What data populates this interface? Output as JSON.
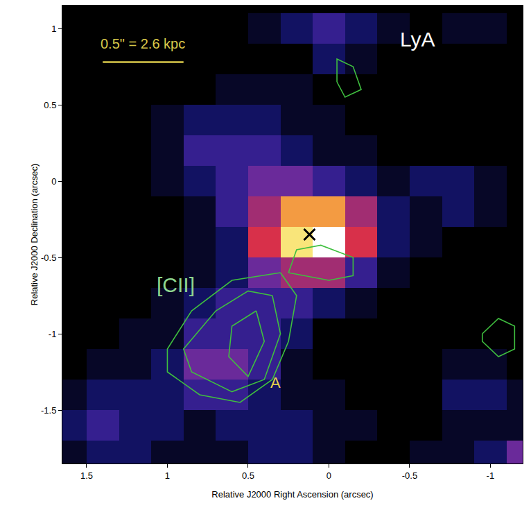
{
  "chart_data": {
    "type": "heatmap",
    "x_title": "Relative J2000 Right Ascension (arcsec)",
    "y_title": "Relative J2000 Declination (arcsec)",
    "xlim": [
      1.65,
      -1.2
    ],
    "xticks": [
      1.5,
      1,
      0.5,
      0,
      -0.5,
      -1
    ],
    "ylim": [
      -1.85,
      1.15
    ],
    "yticks": [
      -1.5,
      -1,
      -0.5,
      0,
      0.5,
      1
    ],
    "x": [
      1.6,
      1.4,
      1.2,
      1.0,
      0.8,
      0.6,
      0.4,
      0.2,
      0.0,
      -0.2,
      -0.4,
      -0.6,
      -0.8,
      -1.0,
      -1.2
    ],
    "y": [
      -1.8,
      -1.6,
      -1.4,
      -1.2,
      -1.0,
      -0.8,
      -0.6,
      -0.4,
      -0.2,
      0.0,
      0.2,
      0.4,
      0.6,
      0.8,
      1.0
    ],
    "z": [
      [
        1,
        2,
        2,
        1,
        1,
        1,
        2,
        2,
        1,
        0,
        0,
        1,
        1,
        2,
        4
      ],
      [
        2,
        3,
        2,
        2,
        1,
        2,
        2,
        2,
        1,
        1,
        0,
        0,
        1,
        1,
        1
      ],
      [
        1,
        2,
        2,
        2,
        3,
        3,
        2,
        1,
        1,
        0,
        0,
        0,
        2,
        2,
        1
      ],
      [
        0,
        1,
        1,
        2,
        4,
        4,
        3,
        1,
        0,
        0,
        0,
        0,
        1,
        1,
        0
      ],
      [
        0,
        0,
        1,
        1,
        3,
        3,
        3,
        2,
        0,
        0,
        0,
        0,
        0,
        0,
        0
      ],
      [
        0,
        0,
        0,
        1,
        2,
        3,
        3,
        3,
        2,
        1,
        0,
        0,
        0,
        0,
        0
      ],
      [
        0,
        0,
        0,
        0,
        1,
        2,
        4,
        5,
        5,
        3,
        1,
        0,
        0,
        0,
        0
      ],
      [
        0,
        0,
        0,
        0,
        1,
        2,
        6,
        9,
        10,
        6,
        2,
        1,
        0,
        0,
        0
      ],
      [
        0,
        0,
        0,
        0,
        1,
        3,
        5,
        8,
        8,
        5,
        2,
        1,
        2,
        1,
        0
      ],
      [
        0,
        0,
        0,
        1,
        2,
        3,
        4,
        4,
        3,
        2,
        1,
        2,
        2,
        1,
        0
      ],
      [
        0,
        0,
        0,
        1,
        3,
        3,
        3,
        2,
        1,
        1,
        0,
        0,
        0,
        0,
        0
      ],
      [
        0,
        0,
        0,
        1,
        2,
        2,
        2,
        1,
        1,
        0,
        0,
        0,
        0,
        0,
        0
      ],
      [
        0,
        0,
        0,
        0,
        0,
        1,
        1,
        1,
        0,
        0,
        0,
        0,
        0,
        0,
        0
      ],
      [
        0,
        0,
        0,
        0,
        0,
        0,
        0,
        0,
        2,
        1,
        0,
        0,
        0,
        0,
        0
      ],
      [
        0,
        0,
        0,
        0,
        0,
        0,
        1,
        2,
        3,
        2,
        1,
        0,
        1,
        1,
        0
      ]
    ],
    "zlim": [
      0,
      10
    ],
    "contours": {
      "color": "#3fbf3f",
      "lines": [
        {
          "x": [
            0.3,
            0.2,
            0.25,
            0.35,
            0.55,
            0.8,
            1.0,
            1.0,
            0.85,
            0.6,
            0.3
          ],
          "y": [
            -0.6,
            -0.75,
            -1.05,
            -1.3,
            -1.45,
            -1.4,
            -1.25,
            -1.1,
            -0.85,
            -0.65,
            -0.6
          ]
        },
        {
          "x": [
            0.35,
            0.3,
            0.4,
            0.6,
            0.85,
            0.9,
            0.7,
            0.5,
            0.35
          ],
          "y": [
            -0.75,
            -1.0,
            -1.3,
            -1.38,
            -1.25,
            -1.1,
            -0.85,
            -0.72,
            -0.75
          ]
        },
        {
          "x": [
            0.45,
            0.4,
            0.5,
            0.62,
            0.6,
            0.45
          ],
          "y": [
            -0.85,
            -1.05,
            -1.28,
            -1.15,
            -0.95,
            -0.85
          ]
        },
        {
          "x": [
            0.25,
            0.2,
            0.05,
            -0.15,
            -0.15,
            0.0,
            0.25
          ],
          "y": [
            -0.6,
            -0.45,
            -0.42,
            -0.5,
            -0.62,
            -0.65,
            -0.6
          ]
        },
        {
          "x": [
            -0.05,
            -0.05,
            -0.15,
            -0.2,
            -0.1,
            -0.05
          ],
          "y": [
            0.65,
            0.8,
            0.75,
            0.6,
            0.55,
            0.65
          ]
        },
        {
          "x": [
            -0.95,
            -1.05,
            -1.15,
            -1.15,
            -1.05,
            -0.95,
            -0.95
          ],
          "y": [
            -1.0,
            -0.9,
            -0.95,
            -1.1,
            -1.15,
            -1.05,
            -1.0
          ]
        }
      ]
    },
    "cross": {
      "x": 0.12,
      "y": -0.35,
      "marker": "x",
      "color": "#000000"
    },
    "scale_bar": {
      "label": "0.5\" = 2.6 kpc",
      "x": [
        1.4,
        0.9
      ],
      "y": 0.78,
      "label_y": 0.9,
      "color": "#d9c84a"
    },
    "annotations": [
      {
        "text": "LyA",
        "x": -0.55,
        "y": 0.93,
        "color": "#ffffff"
      },
      {
        "text": "[CII]",
        "x": 0.95,
        "y": -0.68,
        "color": "#8fd68f"
      },
      {
        "text": "A",
        "x": 0.33,
        "y": -1.32,
        "color": "#e8d44d"
      }
    ]
  }
}
